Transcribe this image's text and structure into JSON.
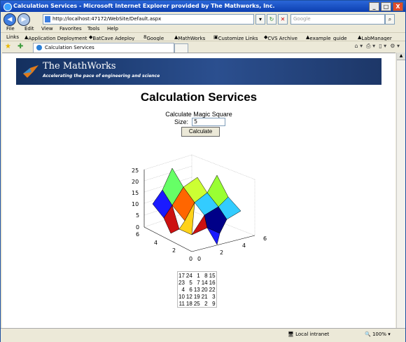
{
  "window": {
    "title": "Calculation Services - Microsoft Internet Explorer provided by The Mathworks, Inc.",
    "controls": [
      "_",
      "□",
      "X"
    ]
  },
  "navigation": {
    "address": "http://localhost:47172/WebSite/Default.aspx",
    "search_placeholder": "Google"
  },
  "menu": [
    "File",
    "Edit",
    "View",
    "Favorites",
    "Tools",
    "Help"
  ],
  "links": {
    "label": "Links",
    "items": [
      "Application Deployment",
      "BatCave Adeploy",
      "Google",
      "MathWorks",
      "Customize Links",
      "CVS Archive",
      "example_guide",
      "LabManager"
    ]
  },
  "tab": {
    "title": "Calculation Services"
  },
  "banner": {
    "company": "The MathWorks",
    "tagline": "Accelerating the pace of engineering and science"
  },
  "page": {
    "heading": "Calculation Services",
    "subtitle": "Calculate Magic Square",
    "size_label": "Size:",
    "size_value": "5",
    "button_label": "Calculate"
  },
  "plot": {
    "z_ticks": [
      "25",
      "20",
      "15",
      "10",
      "5",
      "0"
    ],
    "y_ticks": [
      "6",
      "4",
      "2",
      "0"
    ],
    "x_ticks": [
      "0",
      "2",
      "4",
      "6"
    ]
  },
  "magic_square": [
    [
      "17",
      "24",
      "1",
      "8",
      "15"
    ],
    [
      "23",
      "5",
      "7",
      "14",
      "16"
    ],
    [
      "4",
      "6",
      "13",
      "20",
      "22"
    ],
    [
      "10",
      "12",
      "19",
      "21",
      "3"
    ],
    [
      "11",
      "18",
      "25",
      "2",
      "9"
    ]
  ],
  "status": {
    "zone": "Local intranet",
    "zoom": "100%"
  },
  "colors": {
    "titlebar": "#1a52c8",
    "banner": "#1d3768",
    "surface_red": "#cc1111",
    "surface_yellow": "#ffd21a",
    "surface_cyan": "#33ccff",
    "surface_green": "#66ff66",
    "surface_blue": "#1a1aff",
    "surface_navy": "#000088"
  }
}
